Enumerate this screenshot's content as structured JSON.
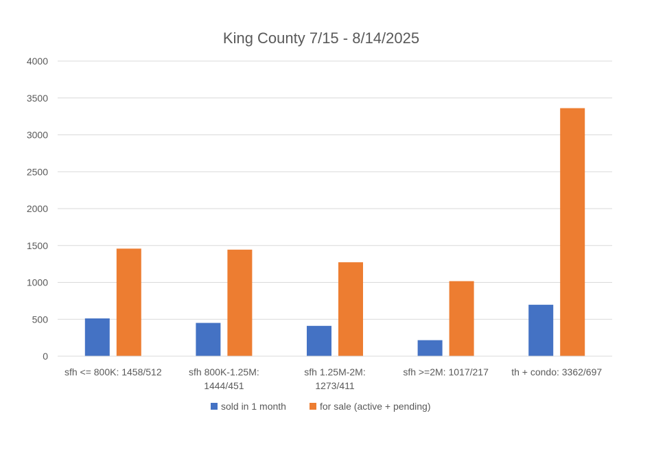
{
  "chart_data": {
    "type": "bar",
    "title": "King County 7/15 - 8/14/2025",
    "xlabel": "",
    "ylabel": "",
    "ylim": [
      0,
      4000
    ],
    "yticks": [
      0,
      500,
      1000,
      1500,
      2000,
      2500,
      3000,
      3500,
      4000
    ],
    "categories": [
      "sfh <= 800K: 1458/512",
      "sfh 800K-1.25M: 1444/451",
      "sfh 1.25M-2M: 1273/411",
      "sfh >=2M: 1017/217",
      "th + condo: 3362/697"
    ],
    "category_lines": [
      [
        "sfh <= 800K: 1458/512"
      ],
      [
        "sfh 800K-1.25M:",
        "1444/451"
      ],
      [
        "sfh 1.25M-2M:",
        "1273/411"
      ],
      [
        "sfh >=2M: 1017/217"
      ],
      [
        "th + condo: 3362/697"
      ]
    ],
    "series": [
      {
        "name": "sold in 1 month",
        "color": "#4472C4",
        "values": [
          512,
          451,
          411,
          217,
          697
        ]
      },
      {
        "name": "for sale (active + pending)",
        "color": "#ED7D31",
        "values": [
          1458,
          1444,
          1273,
          1017,
          3362
        ]
      }
    ],
    "grid": true,
    "legend_position": "bottom"
  }
}
